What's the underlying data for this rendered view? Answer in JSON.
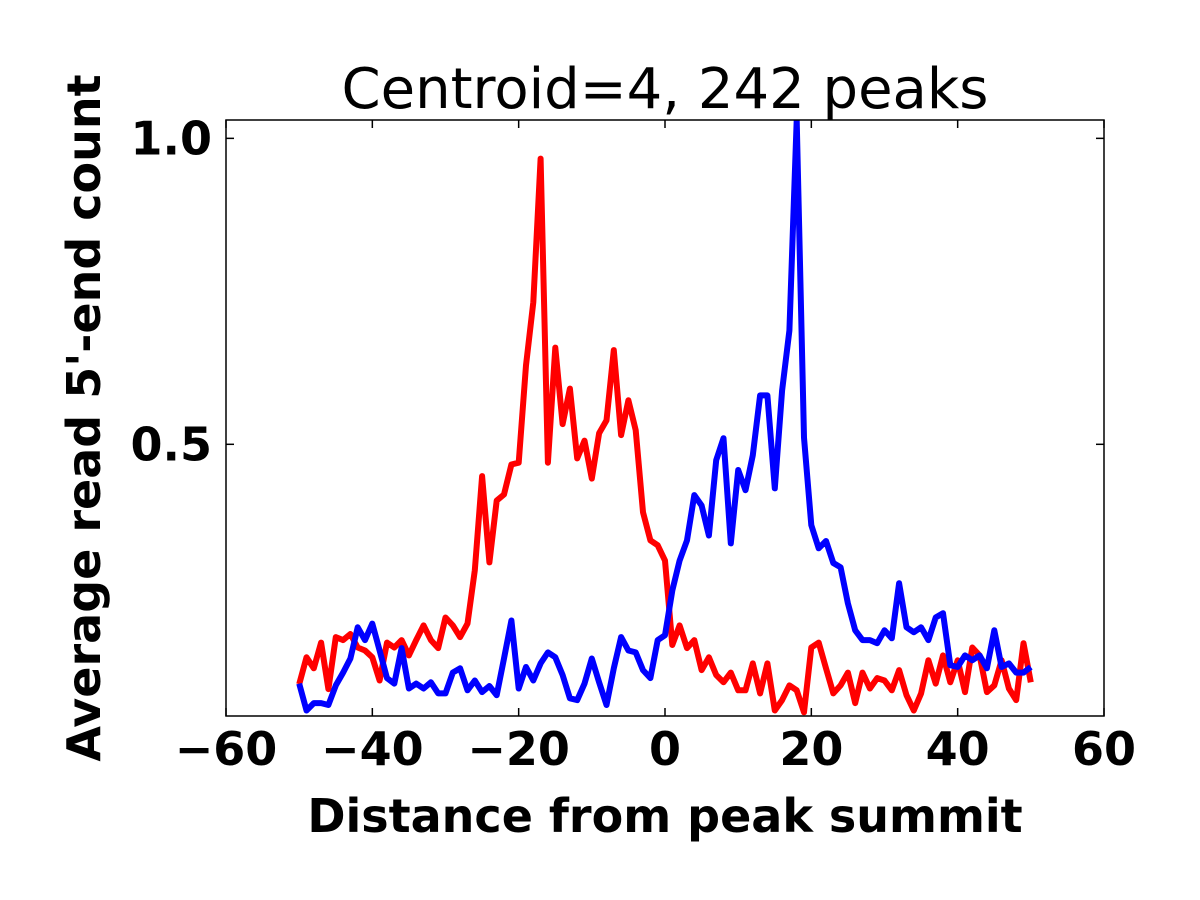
{
  "chart_data": {
    "type": "line",
    "title": "Centroid=4, 242 peaks",
    "xlabel": "Distance from peak summit",
    "ylabel": "Average read 5'-end count",
    "xlim": [
      -60,
      60
    ],
    "ylim": [
      0.056,
      1.03
    ],
    "xticks": [
      -60,
      -40,
      -20,
      0,
      20,
      40,
      60
    ],
    "xtick_labels": [
      "−60",
      "−40",
      "−20",
      "0",
      "20",
      "40",
      "60"
    ],
    "yticks": [
      0.5,
      1.0
    ],
    "ytick_labels": [
      "0.5",
      "1.0"
    ],
    "grid": false,
    "x_start": -50,
    "x_step": 1,
    "series": [
      {
        "name": "red",
        "color": "#ff0000",
        "values": [
          0.108,
          0.152,
          0.134,
          0.176,
          0.1,
          0.185,
          0.18,
          0.19,
          0.168,
          0.163,
          0.152,
          0.114,
          0.176,
          0.168,
          0.18,
          0.155,
          0.18,
          0.204,
          0.18,
          0.167,
          0.217,
          0.204,
          0.185,
          0.207,
          0.294,
          0.448,
          0.307,
          0.408,
          0.418,
          0.467,
          0.47,
          0.629,
          0.732,
          0.967,
          0.47,
          0.658,
          0.533,
          0.591,
          0.477,
          0.506,
          0.444,
          0.518,
          0.539,
          0.654,
          0.515,
          0.572,
          0.523,
          0.389,
          0.343,
          0.335,
          0.31,
          0.172,
          0.204,
          0.167,
          0.18,
          0.131,
          0.152,
          0.123,
          0.111,
          0.127,
          0.098,
          0.098,
          0.142,
          0.093,
          0.142,
          0.065,
          0.082,
          0.106,
          0.098,
          0.062,
          0.168,
          0.176,
          0.134,
          0.093,
          0.106,
          0.127,
          0.077,
          0.127,
          0.101,
          0.118,
          0.114,
          0.098,
          0.131,
          0.09,
          0.065,
          0.093,
          0.147,
          0.109,
          0.155,
          0.111,
          0.147,
          0.095,
          0.168,
          0.155,
          0.095,
          0.106,
          0.147,
          0.101,
          0.082,
          0.175,
          0.111
        ]
      },
      {
        "name": "blue",
        "color": "#0000ff",
        "values": [
          0.109,
          0.065,
          0.077,
          0.077,
          0.074,
          0.106,
          0.127,
          0.15,
          0.201,
          0.18,
          0.207,
          0.163,
          0.118,
          0.109,
          0.167,
          0.101,
          0.109,
          0.101,
          0.111,
          0.093,
          0.093,
          0.127,
          0.134,
          0.098,
          0.114,
          0.095,
          0.105,
          0.09,
          0.15,
          0.212,
          0.101,
          0.136,
          0.114,
          0.142,
          0.16,
          0.152,
          0.123,
          0.085,
          0.082,
          0.109,
          0.15,
          0.111,
          0.074,
          0.134,
          0.185,
          0.163,
          0.16,
          0.131,
          0.118,
          0.18,
          0.188,
          0.261,
          0.31,
          0.343,
          0.417,
          0.4,
          0.351,
          0.474,
          0.51,
          0.338,
          0.458,
          0.425,
          0.482,
          0.58,
          0.58,
          0.428,
          0.588,
          0.686,
          1.03,
          0.511,
          0.368,
          0.33,
          0.342,
          0.306,
          0.299,
          0.24,
          0.196,
          0.18,
          0.18,
          0.175,
          0.196,
          0.183,
          0.273,
          0.201,
          0.193,
          0.201,
          0.18,
          0.217,
          0.224,
          0.139,
          0.136,
          0.155,
          0.147,
          0.155,
          0.134,
          0.196,
          0.136,
          0.142,
          0.127,
          0.127,
          0.136
        ]
      }
    ]
  }
}
